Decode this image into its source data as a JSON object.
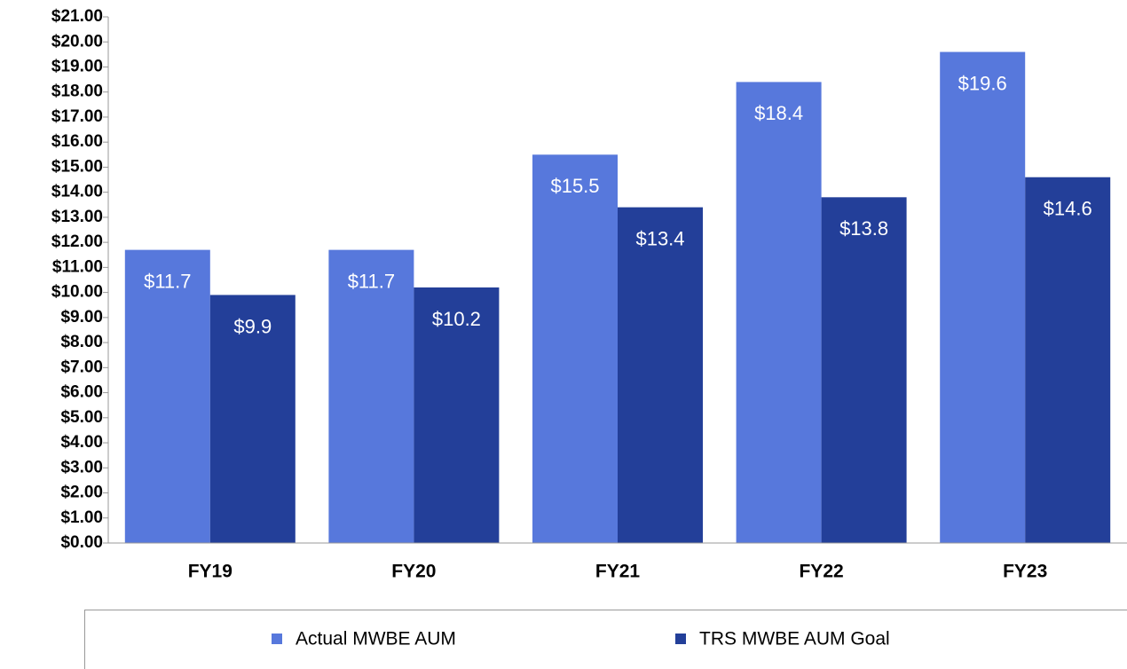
{
  "chart_data": {
    "type": "bar",
    "categories": [
      "FY19",
      "FY20",
      "FY21",
      "FY22",
      "FY23"
    ],
    "series": [
      {
        "name": "Actual MWBE AUM",
        "color": "#5778dc",
        "values": [
          11.7,
          11.7,
          15.5,
          18.4,
          19.6
        ],
        "value_labels": [
          "$11.7",
          "$11.7",
          "$15.5",
          "$18.4",
          "$19.6"
        ]
      },
      {
        "name": "TRS MWBE AUM Goal",
        "color": "#233f99",
        "values": [
          9.9,
          10.2,
          13.4,
          13.8,
          14.6
        ],
        "value_labels": [
          "$9.9",
          "$10.2",
          "$13.4",
          "$13.8",
          "$14.6"
        ]
      }
    ],
    "ylim": [
      0,
      21
    ],
    "yticks": [
      {
        "value": 0,
        "label": "$0.00"
      },
      {
        "value": 1,
        "label": "$1.00"
      },
      {
        "value": 2,
        "label": "$2.00"
      },
      {
        "value": 3,
        "label": "$3.00"
      },
      {
        "value": 4,
        "label": "$4.00"
      },
      {
        "value": 5,
        "label": "$5.00"
      },
      {
        "value": 6,
        "label": "$6.00"
      },
      {
        "value": 7,
        "label": "$7.00"
      },
      {
        "value": 8,
        "label": "$8.00"
      },
      {
        "value": 9,
        "label": "$9.00"
      },
      {
        "value": 10,
        "label": "$10.00"
      },
      {
        "value": 11,
        "label": "$11.00"
      },
      {
        "value": 12,
        "label": "$12.00"
      },
      {
        "value": 13,
        "label": "$13.00"
      },
      {
        "value": 14,
        "label": "$14.00"
      },
      {
        "value": 15,
        "label": "$15.00"
      },
      {
        "value": 16,
        "label": "$16.00"
      },
      {
        "value": 17,
        "label": "$17.00"
      },
      {
        "value": 18,
        "label": "$18.00"
      },
      {
        "value": 19,
        "label": "$19.00"
      },
      {
        "value": 20,
        "label": "$20.00"
      },
      {
        "value": 21,
        "label": "$21.00"
      }
    ],
    "grid": false,
    "legend": "bottom"
  }
}
